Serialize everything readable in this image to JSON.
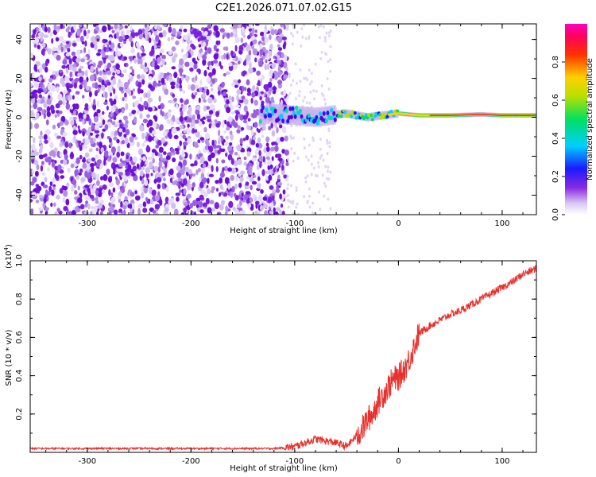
{
  "title": "C2E1.2026.071.07.02.G15",
  "colors": {
    "snr_line": "#e8302c",
    "axis": "#000000"
  },
  "chart_data": [
    {
      "type": "heatmap",
      "id": "spectrogram",
      "xlabel": "Height of straight line (km)",
      "ylabel": "Frequency (Hz)",
      "xlim": [
        -355,
        133
      ],
      "ylim": [
        -50,
        48
      ],
      "xticks": [
        -300,
        -200,
        -100,
        0,
        100
      ],
      "xtick_labels": [
        "-300",
        "-200",
        "-100",
        "0",
        "100"
      ],
      "yticks": [
        -40,
        -20,
        0,
        20,
        40
      ],
      "ytick_labels": [
        "-40",
        "-20",
        "0",
        "20",
        "40"
      ],
      "noise_region_end_km": -107,
      "scatter_region_end_km": -65,
      "signal_start_km": -133,
      "signal_trace": {
        "x": [
          -133,
          -120,
          -100,
          -80,
          -65,
          -50,
          -30,
          -15,
          0,
          20,
          50,
          80,
          100,
          133
        ],
        "freq": [
          1,
          2,
          1,
          0,
          1,
          2,
          0,
          1,
          2,
          1,
          1,
          1.5,
          1,
          1
        ]
      },
      "colorbar": {
        "label": "Normalized spectral amplitude",
        "range": [
          0,
          1
        ],
        "ticks": [
          0.0,
          0.2,
          0.4,
          0.6,
          0.8
        ],
        "tick_labels": [
          "0.0",
          "0.2",
          "0.4",
          "0.6",
          "0.8"
        ]
      }
    },
    {
      "type": "line",
      "id": "snr",
      "xlabel": "Height of straight line (km)",
      "ylabel": "SNR (10 * v/v)",
      "y_multiplier": "(x10",
      "y_multiplier_exp": "4",
      "y_multiplier_close": ")",
      "xlim": [
        -355,
        133
      ],
      "ylim": [
        0,
        1.0
      ],
      "xticks": [
        -300,
        -200,
        -100,
        0,
        100
      ],
      "xtick_labels": [
        "-300",
        "-200",
        "-100",
        "0",
        "100"
      ],
      "yticks": [
        0.2,
        0.4,
        0.6,
        0.8,
        1.0
      ],
      "ytick_labels": [
        "0.2",
        "0.4",
        "0.6",
        "0.8",
        "1.0"
      ],
      "series": [
        {
          "name": "SNR",
          "x": [
            -355,
            -300,
            -250,
            -200,
            -150,
            -120,
            -100,
            -90,
            -80,
            -70,
            -60,
            -50,
            -45,
            -40,
            -35,
            -30,
            -25,
            -20,
            -15,
            -10,
            -5,
            0,
            5,
            10,
            15,
            20,
            25,
            30,
            40,
            50,
            60,
            70,
            80,
            90,
            100,
            110,
            120,
            133
          ],
          "y": [
            0.02,
            0.02,
            0.02,
            0.02,
            0.02,
            0.02,
            0.03,
            0.05,
            0.07,
            0.06,
            0.05,
            0.03,
            0.06,
            0.09,
            0.12,
            0.17,
            0.2,
            0.26,
            0.3,
            0.34,
            0.38,
            0.39,
            0.43,
            0.48,
            0.55,
            0.62,
            0.64,
            0.66,
            0.69,
            0.72,
            0.74,
            0.77,
            0.8,
            0.83,
            0.86,
            0.89,
            0.93,
            0.96
          ]
        }
      ]
    }
  ]
}
